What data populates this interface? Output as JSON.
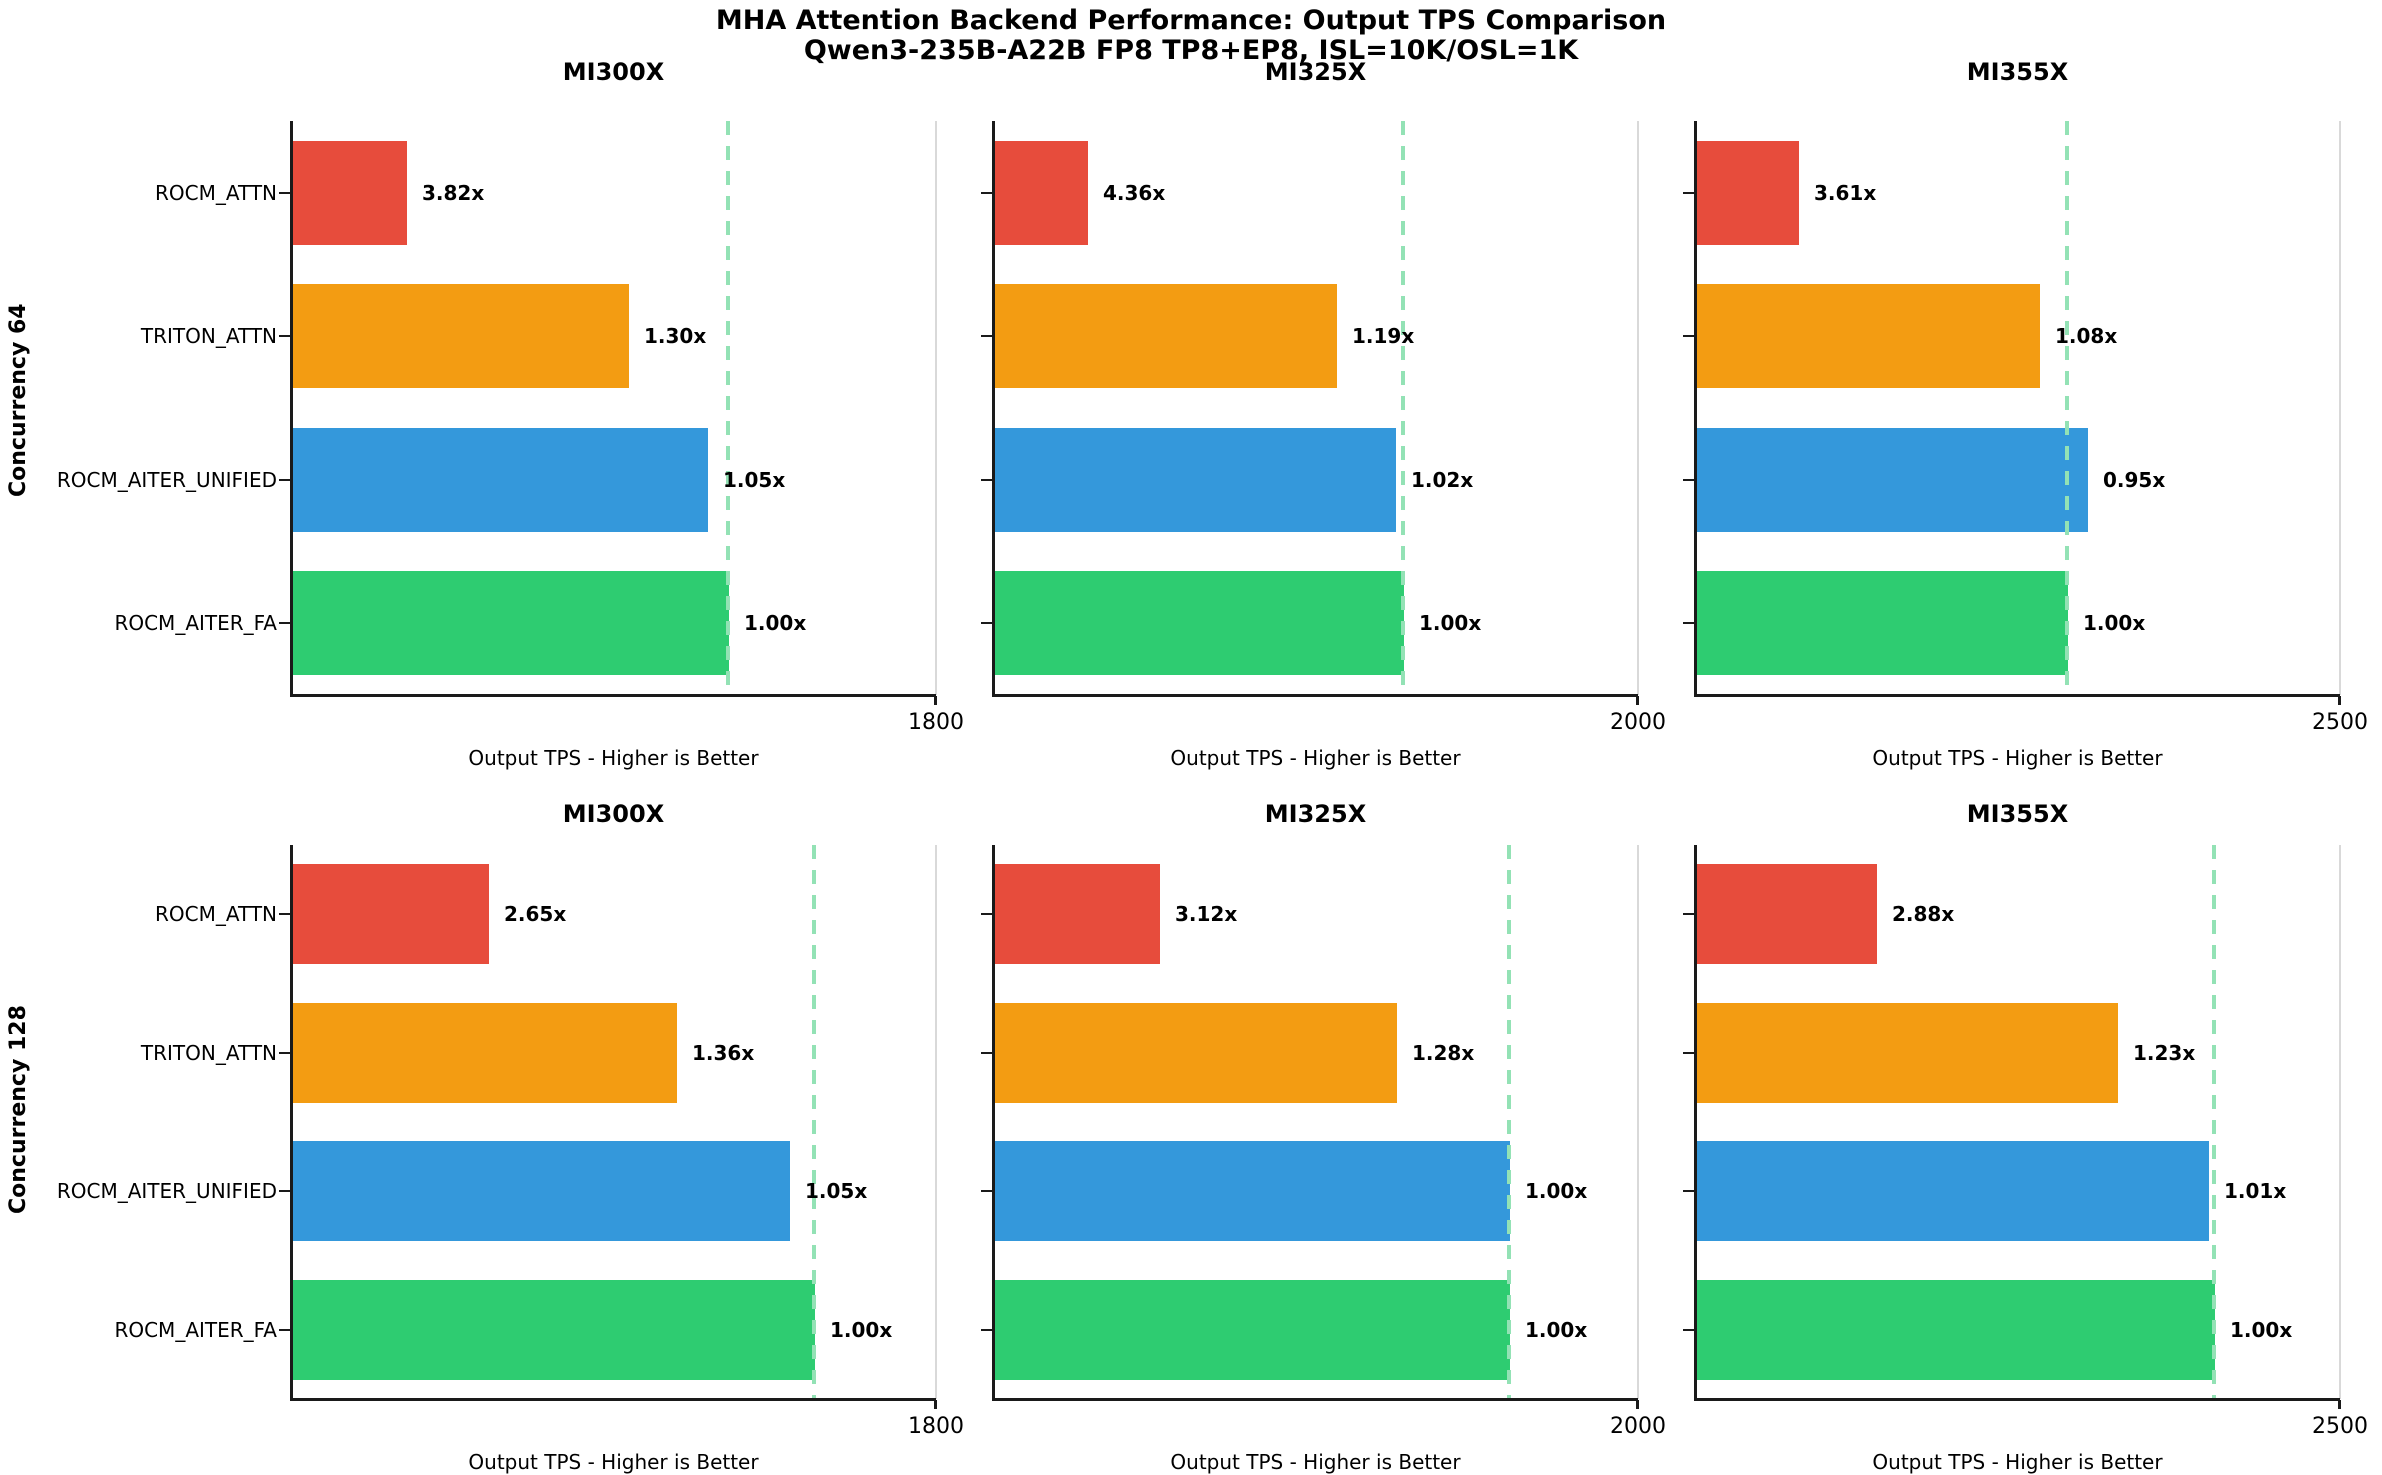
{
  "chart_data": {
    "type": "bar",
    "orientation": "horizontal",
    "grid": false,
    "legend": false,
    "title": "MHA Attention Backend Performance: Output TPS Comparison",
    "subtitle": "Qwen3-235B-A22B FP8 TP8+EP8, ISL=10K/OSL=1K",
    "xlabel": "Output TPS - Higher is Better",
    "categories": [
      "ROCM_ATTN",
      "TRITON_ATTN",
      "ROCM_AITER_UNIFIED",
      "ROCM_AITER_FA"
    ],
    "palette": {
      "ROCM_ATTN": "#e74c3c",
      "TRITON_ATTN": "#f39c12",
      "ROCM_AITER_UNIFIED": "#3498db",
      "ROCM_AITER_FA": "#2ecc71"
    },
    "baseline_dash_color": "#93e2b5",
    "rows": [
      {
        "row_label": "Concurrency 64",
        "subplots": [
          {
            "title": "MI300X",
            "xlim": [
              0,
              1800
            ],
            "xtick_label": "1800",
            "bars": [
              {
                "label": "ROCM_ATTN",
                "speedup": "3.82x",
                "tps_est": 320
              },
              {
                "label": "TRITON_ATTN",
                "speedup": "1.30x",
                "tps_est": 940
              },
              {
                "label": "ROCM_AITER_UNIFIED",
                "speedup": "1.05x",
                "tps_est": 1160
              },
              {
                "label": "ROCM_AITER_FA",
                "speedup": "1.00x",
                "tps_est": 1220
              }
            ]
          },
          {
            "title": "MI325X",
            "xlim": [
              0,
              2000
            ],
            "xtick_label": "2000",
            "bars": [
              {
                "label": "ROCM_ATTN",
                "speedup": "4.36x",
                "tps_est": 290
              },
              {
                "label": "TRITON_ATTN",
                "speedup": "1.19x",
                "tps_est": 1065
              },
              {
                "label": "ROCM_AITER_UNIFIED",
                "speedup": "1.02x",
                "tps_est": 1245
              },
              {
                "label": "ROCM_AITER_FA",
                "speedup": "1.00x",
                "tps_est": 1270
              }
            ]
          },
          {
            "title": "MI355X",
            "xlim": [
              0,
              2500
            ],
            "xtick_label": "2500",
            "bars": [
              {
                "label": "ROCM_ATTN",
                "speedup": "3.61x",
                "tps_est": 400
              },
              {
                "label": "TRITON_ATTN",
                "speedup": "1.08x",
                "tps_est": 1335
              },
              {
                "label": "ROCM_AITER_UNIFIED",
                "speedup": "0.95x",
                "tps_est": 1520
              },
              {
                "label": "ROCM_AITER_FA",
                "speedup": "1.00x",
                "tps_est": 1440
              }
            ]
          }
        ]
      },
      {
        "row_label": "Concurrency 128",
        "subplots": [
          {
            "title": "MI300X",
            "xlim": [
              0,
              1800
            ],
            "xtick_label": "1800",
            "bars": [
              {
                "label": "ROCM_ATTN",
                "speedup": "2.65x",
                "tps_est": 550
              },
              {
                "label": "TRITON_ATTN",
                "speedup": "1.36x",
                "tps_est": 1075
              },
              {
                "label": "ROCM_AITER_UNIFIED",
                "speedup": "1.05x",
                "tps_est": 1390
              },
              {
                "label": "ROCM_AITER_FA",
                "speedup": "1.00x",
                "tps_est": 1460
              }
            ]
          },
          {
            "title": "MI325X",
            "xlim": [
              0,
              2000
            ],
            "xtick_label": "2000",
            "bars": [
              {
                "label": "ROCM_ATTN",
                "speedup": "3.12x",
                "tps_est": 515
              },
              {
                "label": "TRITON_ATTN",
                "speedup": "1.28x",
                "tps_est": 1250
              },
              {
                "label": "ROCM_AITER_UNIFIED",
                "speedup": "1.00x",
                "tps_est": 1600
              },
              {
                "label": "ROCM_AITER_FA",
                "speedup": "1.00x",
                "tps_est": 1600
              }
            ]
          },
          {
            "title": "MI355X",
            "xlim": [
              0,
              2500
            ],
            "xtick_label": "2500",
            "bars": [
              {
                "label": "ROCM_ATTN",
                "speedup": "2.88x",
                "tps_est": 700
              },
              {
                "label": "TRITON_ATTN",
                "speedup": "1.23x",
                "tps_est": 1635
              },
              {
                "label": "ROCM_AITER_UNIFIED",
                "speedup": "1.01x",
                "tps_est": 1990
              },
              {
                "label": "ROCM_AITER_FA",
                "speedup": "1.00x",
                "tps_est": 2010
              }
            ]
          }
        ]
      }
    ]
  }
}
